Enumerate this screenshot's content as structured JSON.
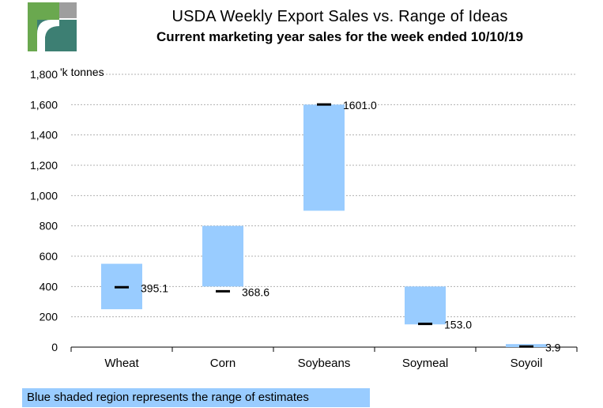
{
  "title": "USDA Weekly Export Sales vs. Range of Ideas",
  "subtitle": "Current marketing year sales for the week ended 10/10/19",
  "footnote": "Blue shaded region represents the range of estimates",
  "colors": {
    "range_fill": "#99ccff",
    "marker": "#000000",
    "gridline": "#b0b0b0",
    "logo_green": "#6aa84f",
    "logo_teal": "#3d7f73",
    "logo_gray": "#9e9e9e"
  },
  "chart_data": {
    "type": "bar",
    "title": "USDA Weekly Export Sales vs. Range of Ideas",
    "subtitle": "Current marketing year sales for the week ended 10/10/19",
    "ylabel": "'k tonnes",
    "ylim": [
      0,
      1800
    ],
    "yticks": [
      0,
      200,
      400,
      600,
      800,
      1000,
      1200,
      1400,
      1600,
      1800
    ],
    "ytick_labels": [
      "0",
      "200",
      "400",
      "600",
      "800",
      "1,000",
      "1,200",
      "1,400",
      "1,600",
      "1,800"
    ],
    "grid": true,
    "categories": [
      "Wheat",
      "Corn",
      "Soybeans",
      "Soymeal",
      "Soyoil"
    ],
    "series": [
      {
        "kind": "range",
        "low": [
          250,
          400,
          900,
          150,
          0
        ],
        "high": [
          550,
          800,
          1600,
          400,
          20
        ]
      },
      {
        "kind": "actual",
        "values": [
          395.1,
          368.6,
          1601.0,
          153.0,
          3.9
        ],
        "labels": [
          "395.1",
          "368.6",
          "1601.0",
          "153.0",
          "3.9"
        ]
      }
    ]
  }
}
